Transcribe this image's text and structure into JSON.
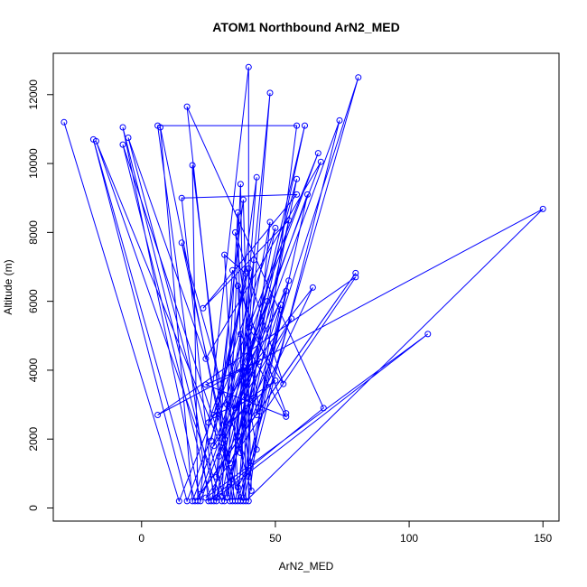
{
  "chart_data": {
    "type": "line",
    "title": "ATOM1 Northbound ArN2_MED",
    "xlabel": "ArN2_MED",
    "ylabel": "Altitude (m)",
    "xlim": [
      -33,
      156
    ],
    "ylim": [
      -380,
      13200
    ],
    "xticks": [
      0,
      50,
      100,
      150
    ],
    "yticks": [
      0,
      2000,
      4000,
      6000,
      8000,
      10000,
      12000
    ],
    "color": "#0000ff",
    "grid": false,
    "points": [
      {
        "x": -29,
        "y": 11200
      },
      {
        "x": 14,
        "y": 200
      },
      {
        "x": 66,
        "y": 10300
      },
      {
        "x": 17,
        "y": 200
      },
      {
        "x": -18,
        "y": 10700
      },
      {
        "x": 20,
        "y": 200
      },
      {
        "x": 80,
        "y": 6820
      },
      {
        "x": 22,
        "y": 400
      },
      {
        "x": 40,
        "y": 12800
      },
      {
        "x": 40,
        "y": 200
      },
      {
        "x": 58,
        "y": 11100
      },
      {
        "x": 6,
        "y": 11100
      },
      {
        "x": 25,
        "y": 200
      },
      {
        "x": 68,
        "y": 2900
      },
      {
        "x": 17,
        "y": 11650
      },
      {
        "x": 33,
        "y": 200
      },
      {
        "x": 48,
        "y": 12050
      },
      {
        "x": 36,
        "y": 200
      },
      {
        "x": 81,
        "y": 12500
      },
      {
        "x": 30,
        "y": 200
      },
      {
        "x": -17,
        "y": 10650
      },
      {
        "x": 38,
        "y": 200
      },
      {
        "x": 74,
        "y": 11250
      },
      {
        "x": 22,
        "y": 200
      },
      {
        "x": -7,
        "y": 11050
      },
      {
        "x": 28,
        "y": 200
      },
      {
        "x": 61,
        "y": 11100
      },
      {
        "x": 31,
        "y": 200
      },
      {
        "x": -5,
        "y": 10750
      },
      {
        "x": 24,
        "y": 4330
      },
      {
        "x": 67,
        "y": 10050
      },
      {
        "x": 19,
        "y": 200
      },
      {
        "x": 7,
        "y": 11050
      },
      {
        "x": 35,
        "y": 200
      },
      {
        "x": 58,
        "y": 9550
      },
      {
        "x": 26,
        "y": 200
      },
      {
        "x": -7,
        "y": 10550
      },
      {
        "x": 37,
        "y": 200
      },
      {
        "x": 62,
        "y": 9100
      },
      {
        "x": 21,
        "y": 200
      },
      {
        "x": 19,
        "y": 9950
      },
      {
        "x": 34,
        "y": 200
      },
      {
        "x": 43,
        "y": 9600
      },
      {
        "x": 27,
        "y": 200
      },
      {
        "x": 15,
        "y": 9000
      },
      {
        "x": 58,
        "y": 9100
      },
      {
        "x": 23,
        "y": 5800
      },
      {
        "x": 55,
        "y": 8350
      },
      {
        "x": 32,
        "y": 300
      },
      {
        "x": 37,
        "y": 9400
      },
      {
        "x": 39,
        "y": 200
      },
      {
        "x": 150,
        "y": 8680
      },
      {
        "x": 6,
        "y": 2700
      },
      {
        "x": 80,
        "y": 6700
      },
      {
        "x": 24,
        "y": 300
      },
      {
        "x": 107,
        "y": 5050
      },
      {
        "x": 28,
        "y": 300
      },
      {
        "x": 48,
        "y": 8300
      },
      {
        "x": 38,
        "y": 300
      },
      {
        "x": 36,
        "y": 8580
      },
      {
        "x": 30,
        "y": 350
      },
      {
        "x": 50,
        "y": 8130
      },
      {
        "x": 25,
        "y": 2480
      },
      {
        "x": 64,
        "y": 6400
      },
      {
        "x": 33,
        "y": 1300
      },
      {
        "x": 15,
        "y": 7700
      },
      {
        "x": 41,
        "y": 500
      },
      {
        "x": 38,
        "y": 8950
      },
      {
        "x": 27,
        "y": 1800
      },
      {
        "x": 56,
        "y": 5500
      },
      {
        "x": 28,
        "y": 900
      },
      {
        "x": 34,
        "y": 6900
      },
      {
        "x": 54,
        "y": 2750
      },
      {
        "x": 36,
        "y": 6450
      },
      {
        "x": 40,
        "y": 900
      },
      {
        "x": 55,
        "y": 6600
      },
      {
        "x": 31,
        "y": 2000
      },
      {
        "x": 42,
        "y": 7200
      },
      {
        "x": 37,
        "y": 1600
      },
      {
        "x": 47,
        "y": 6000
      },
      {
        "x": 32,
        "y": 3000
      },
      {
        "x": 54,
        "y": 6300
      },
      {
        "x": 43,
        "y": 2700
      },
      {
        "x": 40,
        "y": 5250
      },
      {
        "x": 53,
        "y": 3600
      },
      {
        "x": 35,
        "y": 8000
      },
      {
        "x": 44,
        "y": 2800
      },
      {
        "x": 52,
        "y": 5900
      },
      {
        "x": 36,
        "y": 2100
      },
      {
        "x": 41,
        "y": 4100
      },
      {
        "x": 29,
        "y": 1500
      },
      {
        "x": 37,
        "y": 5050
      },
      {
        "x": 54,
        "y": 2650
      },
      {
        "x": 24,
        "y": 3580
      },
      {
        "x": 44,
        "y": 4250
      },
      {
        "x": 35,
        "y": 2900
      },
      {
        "x": 50,
        "y": 3700
      },
      {
        "x": 33,
        "y": 2450
      },
      {
        "x": 42,
        "y": 3200
      },
      {
        "x": 27,
        "y": 2700
      },
      {
        "x": 40,
        "y": 6950
      },
      {
        "x": 26,
        "y": 1950
      },
      {
        "x": 39,
        "y": 6800
      },
      {
        "x": 31,
        "y": 7350
      },
      {
        "x": 36,
        "y": 600
      },
      {
        "x": 43,
        "y": 1700
      },
      {
        "x": 38,
        "y": 4100
      },
      {
        "x": 34,
        "y": 3900
      }
    ]
  }
}
